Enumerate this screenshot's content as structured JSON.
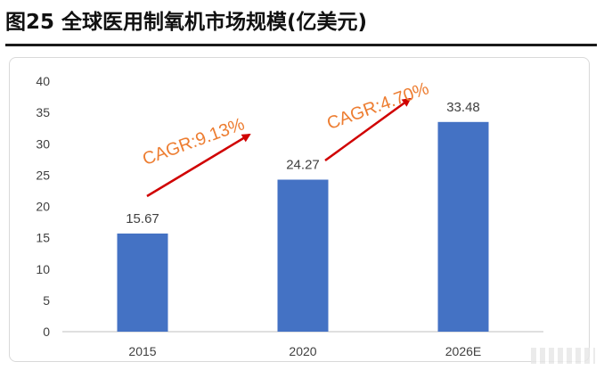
{
  "title": "图25 全球医用制氧机市场规模(亿美元)",
  "chart_data": {
    "type": "bar",
    "categories": [
      "2015",
      "2020",
      "2026E"
    ],
    "values": [
      15.67,
      24.27,
      33.48
    ],
    "data_labels": [
      "15.67",
      "24.27",
      "33.48"
    ],
    "ylim": [
      0,
      40
    ],
    "yticks": [
      "0",
      "5",
      "10",
      "15",
      "20",
      "25",
      "30",
      "35",
      "40"
    ],
    "grid": false,
    "bar_color": "#4472c4",
    "annotations": [
      {
        "text": "CAGR:9.13%",
        "color": "#ed7d31",
        "arrow_color": "#d00000"
      },
      {
        "text": "CAGR:4.70%",
        "color": "#ed7d31",
        "arrow_color": "#d00000"
      }
    ]
  }
}
